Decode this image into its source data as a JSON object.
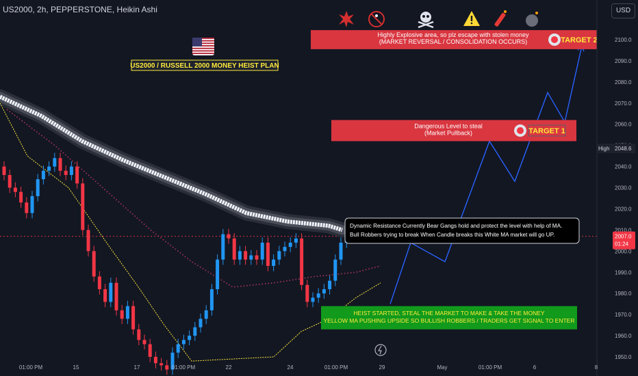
{
  "header": {
    "symbol_line": "US2000, 2h, PEPPERSTONE, Heikin Ashi",
    "currency": "USD"
  },
  "plan_title": "US2000 / RUSSELL 2000 MONEY HEIST PLAN",
  "top_icons": [
    "explosion-icon",
    "no-pedestrian-icon",
    "skull-crossbones-icon",
    "warning-icon",
    "dynamite-icon",
    "bomb-icon"
  ],
  "boxes": {
    "target2": {
      "line1": "Highly Explosive area, so plz escape with stolen money",
      "line2": "(MARKET REVERSAL / CONSOLIDATION OCCURS)",
      "label": "TARGET 2",
      "y_range": [
        2095.5,
        2104.5
      ]
    },
    "target1": {
      "line1": "Dangerous Level to steal",
      "line2": "(Market Pullback)",
      "label": "TARGET 1",
      "y_range": [
        2052,
        2062
      ]
    },
    "resistance_note": {
      "line1": "Dynamic Resistance Currently Bear Gangs hold and protect the level with help of MA.",
      "line2": "Bull Robbers trying to break When Candle breaks this White MA  market will go UP."
    },
    "entry": {
      "line1": "HEIST STARTED, STEAL THE MARKET TO MAKE & TAKE THE MONEY",
      "line2": "YELLOW MA PUSHING UPSIDE SO BULLISH ROBBERS / TRADERS GET SIGNAL TO ENTER",
      "y_range": [
        1963,
        1974
      ]
    }
  },
  "price_labels": {
    "high_label": "High",
    "high_value": "2048.6",
    "current_value": "2007.0",
    "countdown": "01:24"
  },
  "colors": {
    "background": "#131722",
    "bull_candle": "#2196f3",
    "bear_candle": "#f23645",
    "white_ma": "#f0f3fa",
    "yellow_ma": "#ffeb3b",
    "dotted_ma": "#b2365e",
    "projection": "#2962ff",
    "red_box": "#d93640",
    "green_box": "#119a1c",
    "target_text": "#ffeb3b"
  },
  "chart_data": {
    "type": "candlestick",
    "ylim": [
      1950,
      2110
    ],
    "y_ticks": [
      1950,
      1960,
      1970,
      1980,
      1990,
      2000,
      2010,
      2020,
      2030,
      2040,
      2050,
      2060,
      2070,
      2080,
      2090,
      2100
    ],
    "x_ticks": [
      "01:00 PM",
      "15",
      "17",
      "01:00 PM",
      "22",
      "24",
      "01:00 PM",
      "29",
      "May",
      "01:00 PM",
      "6",
      "8"
    ],
    "candles_close_approx": [
      2036,
      2030,
      2028,
      2023,
      2018,
      2026,
      2034,
      2038,
      2040,
      2044,
      2038,
      2036,
      2040,
      2032,
      2010,
      2000,
      1988,
      1982,
      1976,
      1985,
      1972,
      1968,
      1974,
      1963,
      1958,
      1956,
      1950,
      1947,
      1946,
      1944,
      1952,
      1956,
      1958,
      1960,
      1964,
      1968,
      1972,
      1982,
      1996,
      2008,
      2006,
      1996,
      2000,
      1996,
      1998,
      1996,
      2004,
      1993,
      1996,
      2000,
      2002,
      2004,
      2006,
      1984,
      1976,
      1978,
      1980,
      1982,
      1986,
      1996,
      2004,
      2006,
      2007
    ],
    "white_ma": [
      [
        0,
        2073
      ],
      [
        60,
        2064
      ],
      [
        120,
        2052
      ],
      [
        180,
        2043
      ],
      [
        240,
        2035
      ],
      [
        300,
        2027
      ],
      [
        360,
        2018
      ],
      [
        420,
        2014
      ],
      [
        480,
        2012
      ],
      [
        500,
        2010
      ]
    ],
    "yellow_ma": [
      [
        0,
        2070
      ],
      [
        40,
        2045
      ],
      [
        100,
        2030
      ],
      [
        160,
        2002
      ],
      [
        200,
        1984
      ],
      [
        240,
        1965
      ],
      [
        280,
        1948
      ],
      [
        400,
        1950
      ],
      [
        440,
        1962
      ],
      [
        480,
        1968
      ],
      [
        520,
        1978
      ],
      [
        556,
        1985
      ]
    ],
    "dotted_ma": [
      [
        10,
        2067
      ],
      [
        80,
        2050
      ],
      [
        150,
        2030
      ],
      [
        220,
        2010
      ],
      [
        280,
        1995
      ],
      [
        340,
        1983
      ],
      [
        400,
        1985
      ],
      [
        460,
        1988
      ],
      [
        520,
        1990
      ],
      [
        556,
        1993
      ]
    ],
    "projection": [
      [
        570,
        1975
      ],
      [
        600,
        2004
      ],
      [
        650,
        1995
      ],
      [
        715,
        2052
      ],
      [
        752,
        2033
      ],
      [
        800,
        2075
      ],
      [
        825,
        2061
      ],
      [
        850,
        2097
      ]
    ]
  }
}
